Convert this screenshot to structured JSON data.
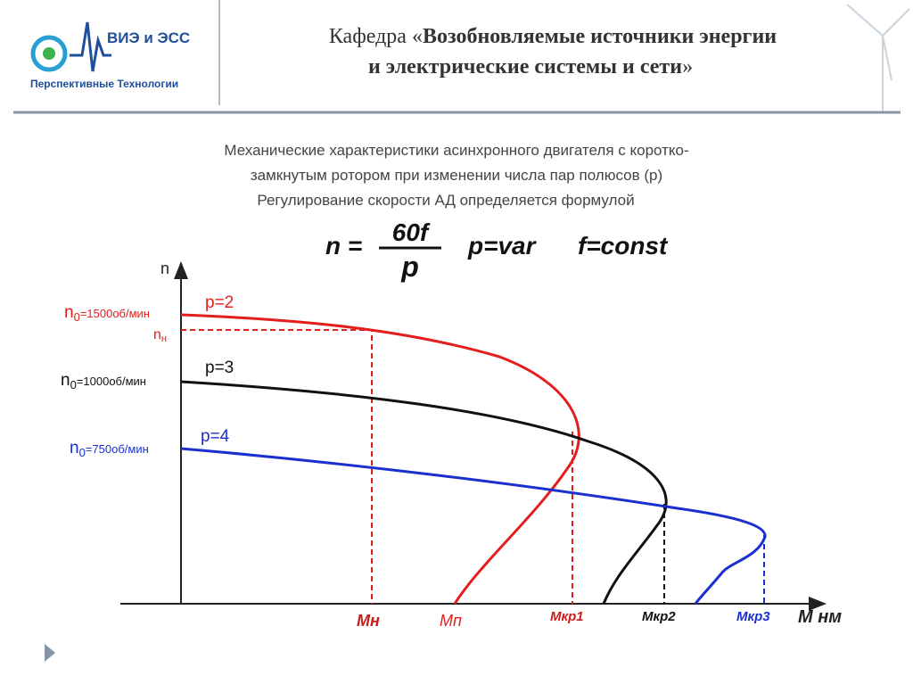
{
  "header": {
    "logo_text": "ВИЭ и ЭСС",
    "logo_subtitle": "Перспективные Технологии",
    "title_prefix": "Кафедра «",
    "title_bold_1": "Возобновляемые источники энергии",
    "title_bold_2": "и электрические системы и сети",
    "title_suffix": "»"
  },
  "diagram": {
    "heading": [
      "Механические характеристики асинхронного двигателя  с коротко-",
      "замкнутым ротором при изменении числа пар полюсов (р)",
      "Регулирование скорости АД определяется формулой"
    ],
    "formula": {
      "lhs": "n =",
      "numerator": "60f",
      "denominator": "p",
      "cond1": "p=var",
      "cond2": "f=const"
    },
    "y_axis_label": "n",
    "x_axis_label": "M нм",
    "y_labels": [
      {
        "symbol": "n",
        "sub": "0",
        "text": "=1500об/мин"
      },
      {
        "symbol": "n",
        "sub": "н",
        "text": ""
      },
      {
        "symbol": "n",
        "sub": "0",
        "text": "=1000об/мин"
      },
      {
        "symbol": "n",
        "sub": "0",
        "text": "=750об/мин"
      }
    ],
    "curve_labels": [
      "p=2",
      "p=3",
      "p=4"
    ],
    "x_labels": [
      "Мн",
      "Мп",
      "Мкр1",
      "Мкр2",
      "Мкр3"
    ]
  }
}
